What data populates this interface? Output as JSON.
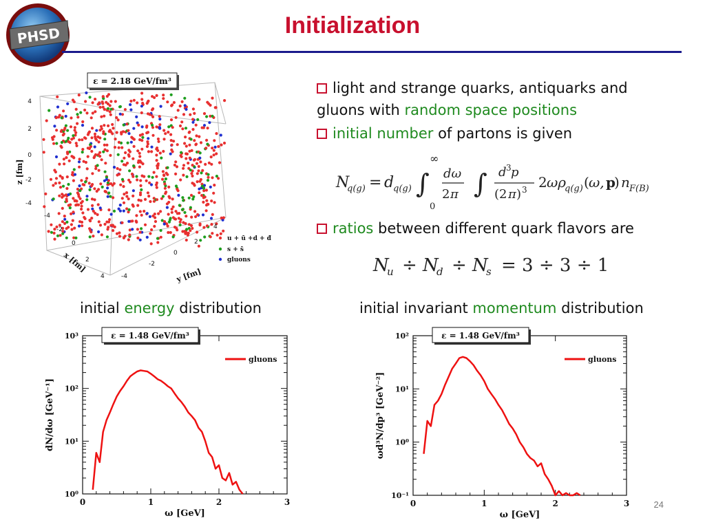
{
  "slide": {
    "title": "Initialization",
    "logo_text": "PHSD",
    "page_number": "24"
  },
  "bullets": [
    {
      "parts": [
        "light and strange quarks, antiquarks and",
        "gluons with ",
        "random space positions"
      ]
    },
    {
      "parts": [
        "initial number",
        " of partons is given"
      ]
    },
    {
      "parts": [
        "ratios",
        " between different quark flavors are"
      ]
    }
  ],
  "formulas": {
    "partons": "N_q(g) = d_q(g) ∫₀^∞ dω/2π ∫ d³p/(2π)³ 2ωρ_q(g)(ω,p) n_F(B)",
    "ratio": "N_u ÷ N_d ÷ N_s = 3 ÷ 3 ÷ 1"
  },
  "captions": {
    "energy_prefix": "initial ",
    "energy_word": "energy",
    "energy_suffix": " distribution",
    "momentum_prefix": "initial invariant ",
    "momentum_word": "momentum",
    "momentum_suffix": " distribution"
  },
  "colors": {
    "title": "#c8102e",
    "accent_green": "#1f8a1f",
    "rule": "#1a1a8c",
    "gluon_line": "#ee1111",
    "quark_points": "#e83030",
    "strange_points": "#1e9e1e",
    "gluon_points": "#2030d0"
  },
  "scatter3d": {
    "label": "ε = 2.18 GeV/fm³",
    "xlabel": "x [fm]",
    "ylabel": "y [fm]",
    "zlabel": "z [fm]",
    "z_ticks": [
      "4",
      "2",
      "0",
      "-2",
      "-4"
    ],
    "x_ticks": [
      "-4",
      "-2",
      "0",
      "2",
      "4"
    ],
    "y_ticks": [
      "-4",
      "-2",
      "0",
      "2",
      "4"
    ],
    "legend": [
      "u + ū +d + đ",
      "s + s̄",
      "gluons"
    ]
  },
  "chart_data": [
    {
      "type": "line",
      "title": "ε = 1.48 GeV/fm³",
      "xlabel": "ω [GeV]",
      "ylabel": "dN/dω [GeV⁻¹]",
      "xlim": [
        0,
        3
      ],
      "ylim": [
        1,
        1000
      ],
      "yscale": "log",
      "x_ticks": [
        "0",
        "1",
        "2",
        "3"
      ],
      "y_ticks": [
        "10⁰",
        "10¹",
        "10²",
        "10³"
      ],
      "legend": "top-right",
      "series": [
        {
          "name": "gluons",
          "x": [
            0.15,
            0.2,
            0.25,
            0.3,
            0.35,
            0.4,
            0.45,
            0.5,
            0.55,
            0.6,
            0.65,
            0.7,
            0.75,
            0.8,
            0.85,
            0.9,
            0.95,
            1.0,
            1.05,
            1.1,
            1.15,
            1.2,
            1.25,
            1.3,
            1.35,
            1.4,
            1.45,
            1.5,
            1.55,
            1.6,
            1.65,
            1.7,
            1.75,
            1.8,
            1.85,
            1.9,
            1.95,
            2.0,
            2.05,
            2.1,
            2.15,
            2.2,
            2.25,
            2.3,
            2.35
          ],
          "y": [
            1.2,
            6,
            4,
            15,
            25,
            35,
            50,
            70,
            90,
            110,
            140,
            170,
            190,
            210,
            220,
            215,
            210,
            190,
            170,
            150,
            140,
            125,
            110,
            100,
            80,
            65,
            55,
            45,
            35,
            30,
            25,
            18,
            15,
            10,
            6,
            5,
            3,
            3.5,
            2,
            1.8,
            2.5,
            1.5,
            1.7,
            1.2,
            1.0
          ]
        }
      ]
    },
    {
      "type": "line",
      "title": "ε = 1.48 GeV/fm³",
      "xlabel": "ω [GeV]",
      "ylabel": "ωd³N/dp³ [GeV⁻²]",
      "xlim": [
        0,
        3
      ],
      "ylim": [
        0.1,
        100
      ],
      "yscale": "log",
      "x_ticks": [
        "0",
        "1",
        "2",
        "3"
      ],
      "y_ticks": [
        "10⁻¹",
        "10⁰",
        "10¹",
        "10²"
      ],
      "legend": "top-right",
      "series": [
        {
          "name": "gluons",
          "x": [
            0.15,
            0.2,
            0.25,
            0.3,
            0.35,
            0.4,
            0.45,
            0.5,
            0.55,
            0.6,
            0.65,
            0.7,
            0.75,
            0.8,
            0.85,
            0.9,
            0.95,
            1.0,
            1.05,
            1.1,
            1.15,
            1.2,
            1.25,
            1.3,
            1.35,
            1.4,
            1.45,
            1.5,
            1.55,
            1.6,
            1.65,
            1.7,
            1.75,
            1.8,
            1.85,
            1.9,
            1.95,
            2.0,
            2.05,
            2.1,
            2.15,
            2.2,
            2.25,
            2.3,
            2.35
          ],
          "y": [
            0.6,
            2.5,
            2.0,
            5,
            6,
            8,
            12,
            17,
            24,
            30,
            38,
            40,
            38,
            33,
            28,
            22,
            18,
            14,
            10,
            8,
            6.5,
            5,
            4,
            3,
            2.2,
            1.8,
            1.4,
            1.0,
            0.8,
            0.6,
            0.5,
            0.45,
            0.35,
            0.4,
            0.25,
            0.2,
            0.15,
            0.1,
            0.12,
            0.1,
            0.11,
            0.1,
            0.1,
            0.11,
            0.1
          ]
        }
      ]
    }
  ]
}
